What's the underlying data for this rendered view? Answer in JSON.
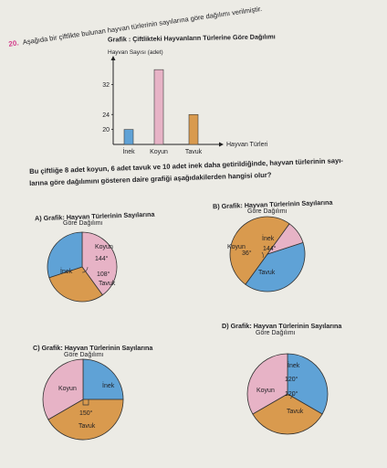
{
  "question": {
    "number": "20.",
    "intro": "Aşağıda bir çiftlikte bulunan hayvan türlerinin sayılarına göre dağılımı verilmiştir."
  },
  "bar_chart": {
    "title": "Grafik : Çiftlikteki Hayvanların Türlerine Göre Dağılımı",
    "ylabel": "Hayvan Sayısı (adet)",
    "xlabel": "Hayvan Türleri",
    "colors": {
      "inek": "#5fa2d6",
      "koyun": "#e7b3c6",
      "tavuk": "#d99a4e"
    }
  },
  "chart_data": [
    {
      "type": "bar",
      "title": "Grafik : Çiftlikteki Hayvanların Türlerine Göre Dağılımı",
      "xlabel": "Hayvan Türleri",
      "ylabel": "Hayvan Sayısı (adet)",
      "categories": [
        "İnek",
        "Koyun",
        "Tavuk"
      ],
      "values": [
        20,
        36,
        24
      ],
      "y_ticks": [
        "20",
        "24",
        "32"
      ],
      "ylim": [
        16,
        38
      ],
      "grid": false
    },
    {
      "type": "pie",
      "title": "A) Grafik: Hayvan Türlerinin Sayılarına Göre Dağılımı",
      "categories": [
        "Koyun",
        "Tavuk",
        "İnek"
      ],
      "angles": [
        144,
        108,
        108
      ]
    },
    {
      "type": "pie",
      "title": "B) Grafik: Hayvan Türlerinin Sayılarına Göre Dağılımı",
      "categories": [
        "İnek",
        "Tavuk",
        "Koyun"
      ],
      "angles": [
        144,
        180,
        36
      ]
    },
    {
      "type": "pie",
      "title": "C) Grafik: Hayvan Türlerinin Sayılarına Göre Dağılımı",
      "categories": [
        "İnek",
        "Tavuk",
        "Koyun"
      ],
      "angles": [
        90,
        150,
        120
      ]
    },
    {
      "type": "pie",
      "title": "D) Grafik: Hayvan Türlerinin Sayılarına Göre Dağılımı",
      "categories": [
        "İnek",
        "Tavuk",
        "Koyun"
      ],
      "angles": [
        120,
        120,
        120
      ]
    }
  ],
  "question_text": {
    "line1": "Bu çiftliğe 8 adet koyun, 6 adet tavuk ve 10 adet inek daha getirildiğinde, hayvan türlerinin sayı-",
    "line2": "larına göre dağılımını gösteren daire grafiği aşağıdakilerden hangisi olur?"
  },
  "options": {
    "A": {
      "title": "A) Grafik: Hayvan Türlerinin Sayılarına",
      "subtitle": "Göre Dağılımı",
      "labels": {
        "koyun": "Koyun",
        "koyun_angle": "144°",
        "inek": "İnek",
        "tavuk_angle": "108°",
        "tavuk": "Tavuk"
      }
    },
    "B": {
      "title": "B) Grafik: Hayvan Türlerinin Sayılarına",
      "subtitle": "Göre Dağılımı",
      "labels": {
        "inek": "İnek",
        "inek_angle": "144°",
        "koyun": "Koyun",
        "koyun_angle": "36°",
        "tavuk": "Tavuk"
      }
    },
    "C": {
      "title": "C) Grafik: Hayvan Türlerinin Sayılarına",
      "subtitle": "Göre Dağılımı",
      "labels": {
        "koyun": "Koyun",
        "inek": "İnek",
        "tavuk_angle": "150°",
        "tavuk": "Tavuk"
      }
    },
    "D": {
      "title": "D) Grafik: Hayvan Türlerinin Sayılarına",
      "subtitle": "Göre Dağılımı",
      "labels": {
        "inek": "İnek",
        "inek_angle": "120°",
        "koyun": "Koyun",
        "tavuk_angle": "120°",
        "tavuk": "Tavuk"
      }
    }
  }
}
